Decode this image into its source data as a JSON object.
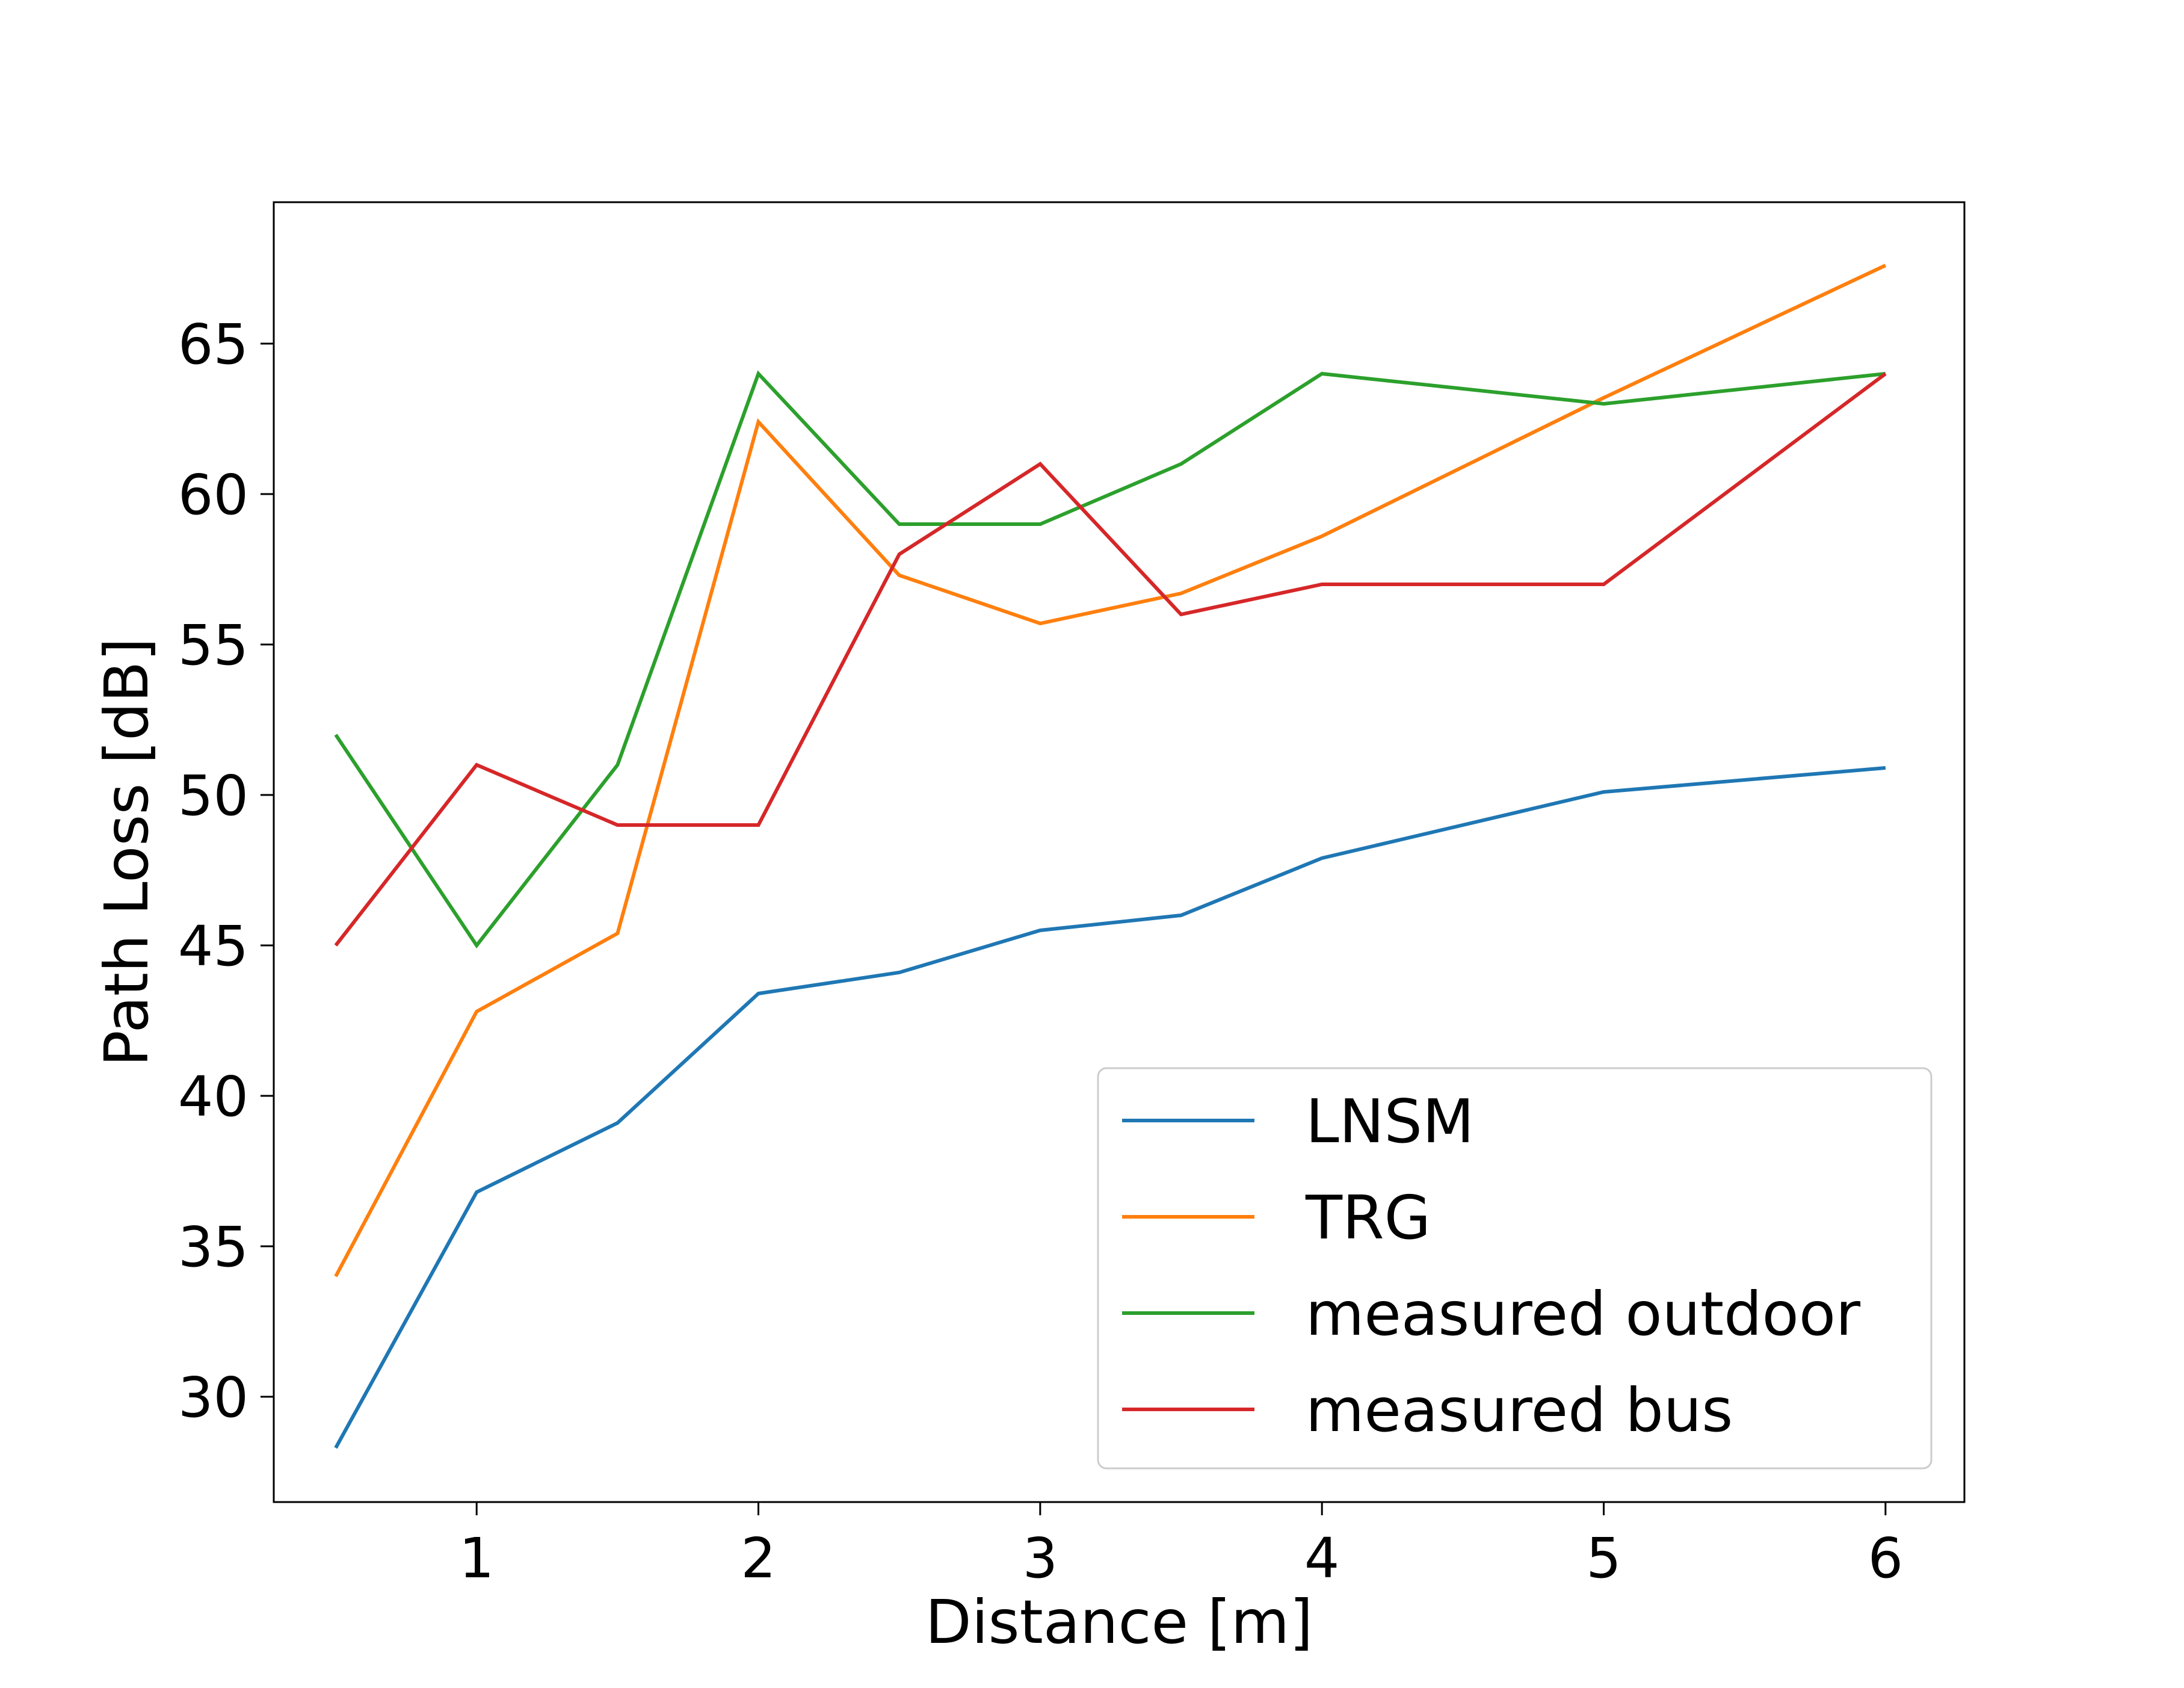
{
  "chart_data": {
    "type": "line",
    "title": "",
    "xlabel": "Distance [m]",
    "ylabel": "Path Loss [dB]",
    "x": [
      0.5,
      1,
      1.5,
      2,
      2.5,
      3,
      3.5,
      4,
      5,
      6
    ],
    "xlim": [
      0.28,
      6.28
    ],
    "ylim": [
      26.5,
      69.7
    ],
    "xticks": [
      1,
      2,
      3,
      4,
      5,
      6
    ],
    "yticks": [
      30,
      35,
      40,
      45,
      50,
      55,
      60,
      65
    ],
    "xtick_labels": [
      "1",
      "2",
      "3",
      "4",
      "5",
      "6"
    ],
    "ytick_labels": [
      "30",
      "35",
      "40",
      "45",
      "50",
      "55",
      "60",
      "65"
    ],
    "grid": false,
    "legend_position": "lower-right",
    "series": [
      {
        "name": "LNSM",
        "color": "#1f77b4",
        "values": [
          28.3,
          36.8,
          39.1,
          43.4,
          44.1,
          45.5,
          46.0,
          47.9,
          50.1,
          50.9
        ]
      },
      {
        "name": "TRG",
        "color": "#ff7f0e",
        "values": [
          34.0,
          42.8,
          45.4,
          62.4,
          57.3,
          55.7,
          56.7,
          58.6,
          63.2,
          67.6
        ]
      },
      {
        "name": "measured outdoor",
        "color": "#2ca02c",
        "values": [
          52.0,
          45.0,
          51.0,
          64.0,
          59.0,
          59.0,
          61.0,
          64.0,
          63.0,
          64.0
        ]
      },
      {
        "name": "measured bus",
        "color": "#d62728",
        "values": [
          45.0,
          51.0,
          49.0,
          49.0,
          58.0,
          61.0,
          56.0,
          57.0,
          57.0,
          64.0
        ]
      }
    ]
  }
}
